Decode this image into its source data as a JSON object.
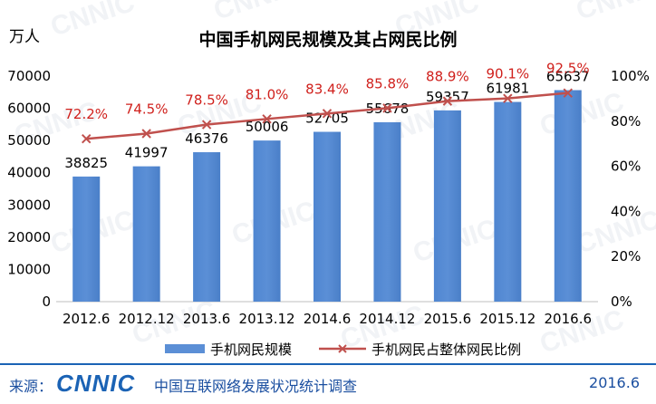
{
  "chart_data": {
    "type": "bar",
    "title": "中国手机网民规模及其占网民比例",
    "ylabel": "万人",
    "categories": [
      "2012.6",
      "2012.12",
      "2013.6",
      "2013.12",
      "2014.6",
      "2014.12",
      "2015.6",
      "2015.12",
      "2016.6"
    ],
    "ylim": [
      0,
      70000
    ],
    "y_ticks": [
      "0",
      "10000",
      "20000",
      "30000",
      "40000",
      "50000",
      "60000",
      "70000"
    ],
    "y2lim": [
      0,
      100
    ],
    "y2_ticks": [
      "0%",
      "20%",
      "40%",
      "60%",
      "80%",
      "100%"
    ],
    "series": [
      {
        "name": "手机网民规模",
        "type": "bar",
        "axis": "left",
        "values": [
          38825,
          41997,
          46376,
          50006,
          52705,
          55678,
          59357,
          61981,
          65637
        ],
        "labels": [
          "38825",
          "41997",
          "46376",
          "50006",
          "52705",
          "55678",
          "59357",
          "61981",
          "65637"
        ],
        "color": "#5b8fd6"
      },
      {
        "name": "手机网民占整体网民比例",
        "type": "line",
        "axis": "right",
        "values": [
          72.2,
          74.5,
          78.5,
          81.0,
          83.4,
          85.8,
          88.9,
          90.1,
          92.5
        ],
        "labels": [
          "72.2%",
          "74.5%",
          "78.5%",
          "81.0%",
          "83.4%",
          "85.8%",
          "88.9%",
          "90.1%",
          "92.5%"
        ],
        "color": "#c0504d",
        "label_color": "#d0201c"
      }
    ],
    "legend_position": "bottom",
    "grid": false
  },
  "watermark": "CNNIC",
  "footer": {
    "source_label": "来源：",
    "logo": "CNNIC",
    "text": "中国互联网络发展状况统计调查",
    "date": "2016.6"
  }
}
